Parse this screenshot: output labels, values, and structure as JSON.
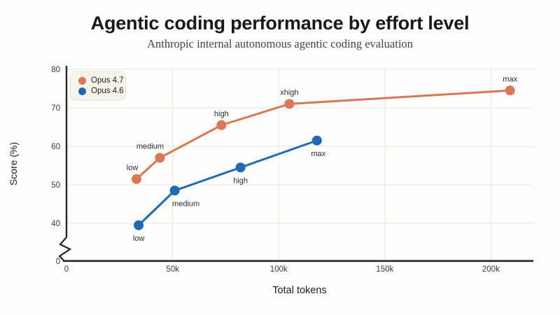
{
  "title": "Agentic coding performance by effort level",
  "subtitle": "Anthropic internal autonomous agentic coding evaluation",
  "colors": {
    "orange": "#d97757",
    "blue": "#2069b3",
    "axis": "#262521",
    "grid": "#edeae2",
    "background": "#fdfdfb",
    "legend_background": "#f6f3eb"
  },
  "chart_data": {
    "type": "line",
    "title": "Agentic coding performance by effort level",
    "subtitle": "Anthropic internal autonomous agentic coding evaluation",
    "xlabel": "Total tokens",
    "ylabel": "Score (%)",
    "xlim": [
      0,
      220000
    ],
    "ylim": [
      0,
      80
    ],
    "y_axis_break": {
      "between": [
        0,
        40
      ]
    },
    "grid": true,
    "legend_position": "top-left",
    "x_ticks": [
      {
        "value": 0,
        "label": "0"
      },
      {
        "value": 50000,
        "label": "50k"
      },
      {
        "value": 100000,
        "label": "100k"
      },
      {
        "value": 150000,
        "label": "150k"
      },
      {
        "value": 200000,
        "label": "200k"
      }
    ],
    "y_ticks": [
      {
        "value": 0,
        "label": "0"
      },
      {
        "value": 40,
        "label": "40"
      },
      {
        "value": 50,
        "label": "50"
      },
      {
        "value": 60,
        "label": "60"
      },
      {
        "value": 70,
        "label": "70"
      },
      {
        "value": 80,
        "label": "80"
      }
    ],
    "series": [
      {
        "name": "Opus 4.7",
        "color": "#d97757",
        "label_side": "above",
        "points": [
          {
            "label": "low",
            "x": 33000,
            "y": 51.5
          },
          {
            "label": "medium",
            "x": 44000,
            "y": 57
          },
          {
            "label": "high",
            "x": 73000,
            "y": 65.5
          },
          {
            "label": "xhigh",
            "x": 105000,
            "y": 71
          },
          {
            "label": "max",
            "x": 209000,
            "y": 74.5
          }
        ]
      },
      {
        "name": "Opus 4.6",
        "color": "#2069b3",
        "label_side": "below",
        "points": [
          {
            "label": "low",
            "x": 34000,
            "y": 39.5
          },
          {
            "label": "medium",
            "x": 51000,
            "y": 48.5
          },
          {
            "label": "high",
            "x": 82000,
            "y": 54.5
          },
          {
            "label": "max",
            "x": 118000,
            "y": 61.5
          }
        ]
      }
    ]
  }
}
